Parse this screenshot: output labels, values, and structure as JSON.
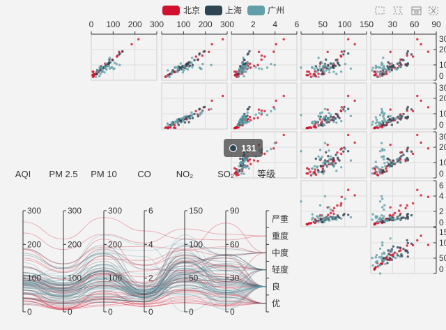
{
  "legend": [
    {
      "name": "北京",
      "color": "#d0102c"
    },
    {
      "name": "上海",
      "color": "#2f4554"
    },
    {
      "name": "广州",
      "color": "#61a0a8"
    }
  ],
  "toolbox": [
    "rect-select-icon",
    "lasso-select-icon",
    "keep-selection-icon",
    "clear-selection-icon"
  ],
  "tooltip": {
    "value": "131"
  },
  "chart_data": {
    "type": "scatter-matrix-parallel",
    "dimensions": [
      "AQI",
      "PM 2.5",
      "PM 10",
      "CO",
      "NO₂",
      "SO₂",
      "等级"
    ],
    "dimension_max": [
      300,
      300,
      300,
      6,
      150,
      90
    ],
    "level_categories": [
      "优",
      "良",
      "轻度",
      "中度",
      "重度",
      "严重"
    ],
    "matrix": {
      "x_dims": [
        1,
        2,
        3,
        4,
        5
      ],
      "y_dims": [
        0,
        1,
        2,
        3,
        4
      ],
      "x_ticks": [
        [
          "0",
          "100",
          "200",
          "300"
        ],
        [
          "0",
          "100",
          "200",
          "300"
        ],
        [
          "0",
          "2",
          "4",
          "6"
        ],
        [
          "0",
          "50",
          "100",
          "150"
        ],
        [
          "0",
          "30",
          "60",
          "90"
        ]
      ],
      "y_ticks": [
        [
          "0",
          "100",
          "200",
          "300"
        ],
        [
          "0",
          "100",
          "200",
          "300"
        ],
        [
          "0",
          "100",
          "200",
          "300"
        ],
        [
          "0",
          "2",
          "4",
          "6"
        ],
        [
          "0",
          "50",
          "100",
          "150"
        ]
      ]
    },
    "parallel_ticks": [
      [
        "0",
        "100",
        "200",
        "300"
      ],
      [
        "0",
        "100",
        "200",
        "300"
      ],
      [
        "0",
        "100",
        "200",
        "300"
      ],
      [
        "0",
        "2",
        "4",
        "6"
      ],
      [
        "0",
        "50",
        "100",
        "150"
      ],
      [
        "0",
        "30",
        "60",
        "90"
      ]
    ],
    "series": [
      {
        "name": "北京",
        "data": [
          [
            55,
            9,
            56,
            0.46,
            18,
            6,
            1
          ],
          [
            25,
            11,
            21,
            0.65,
            34,
            9,
            0
          ],
          [
            56,
            7,
            63,
            0.3,
            14,
            5,
            1
          ],
          [
            33,
            7,
            29,
            0.33,
            16,
            6,
            0
          ],
          [
            42,
            24,
            44,
            0.76,
            40,
            16,
            0
          ],
          [
            82,
            58,
            90,
            1.77,
            68,
            33,
            1
          ],
          [
            74,
            49,
            77,
            1.46,
            48,
            27,
            1
          ],
          [
            78,
            55,
            80,
            1.29,
            59,
            29,
            1
          ],
          [
            267,
            216,
            280,
            4.8,
            108,
            64,
            4
          ],
          [
            185,
            127,
            216,
            2.52,
            61,
            27,
            3
          ],
          [
            39,
            19,
            38,
            0.57,
            31,
            15,
            0
          ],
          [
            41,
            11,
            40,
            0.43,
            21,
            7,
            0
          ],
          [
            64,
            38,
            74,
            1.04,
            46,
            22,
            1
          ],
          [
            108,
            79,
            120,
            1.7,
            75,
            41,
            2
          ],
          [
            108,
            63,
            116,
            1.48,
            44,
            26,
            2
          ],
          [
            33,
            6,
            29,
            0.34,
            13,
            5,
            0
          ],
          [
            94,
            66,
            110,
            1.54,
            62,
            31,
            1
          ],
          [
            186,
            142,
            192,
            3.88,
            93,
            79,
            3
          ],
          [
            57,
            31,
            54,
            0.96,
            32,
            14,
            1
          ],
          [
            22,
            8,
            17,
            0.48,
            23,
            10,
            0
          ],
          [
            39,
            15,
            36,
            0.61,
            29,
            13,
            0
          ],
          [
            94,
            69,
            114,
            2.08,
            73,
            39,
            1
          ],
          [
            99,
            73,
            110,
            2.43,
            76,
            48,
            1
          ],
          [
            31,
            12,
            30,
            0.5,
            32,
            16,
            0
          ],
          [
            42,
            27,
            43,
            1,
            53,
            22,
            0
          ],
          [
            154,
            117,
            157,
            3.05,
            92,
            58,
            3
          ],
          [
            234,
            185,
            230,
            4.09,
            123,
            69,
            4
          ],
          [
            160,
            120,
            186,
            2.77,
            91,
            50,
            3
          ],
          [
            134,
            96,
            165,
            2.76,
            83,
            41,
            2
          ],
          [
            52,
            24,
            60,
            1.03,
            50,
            21,
            1
          ]
        ]
      },
      {
        "name": "上海",
        "data": [
          [
            91,
            45,
            125,
            0.82,
            34,
            23,
            1
          ],
          [
            65,
            27,
            78,
            0.86,
            45,
            29,
            1
          ],
          [
            83,
            60,
            84,
            1.09,
            73,
            27,
            1
          ],
          [
            109,
            81,
            121,
            1.28,
            68,
            51,
            2
          ],
          [
            106,
            77,
            114,
            1.07,
            55,
            51,
            2
          ],
          [
            89,
            65,
            78,
            0.86,
            51,
            26,
            1
          ],
          [
            53,
            33,
            47,
            0.64,
            50,
            17,
            1
          ],
          [
            80,
            55,
            80,
            1.01,
            75,
            24,
            1
          ],
          [
            117,
            81,
            124,
            1.03,
            45,
            24,
            2
          ],
          [
            99,
            71,
            142,
            1.1,
            62,
            42,
            1
          ],
          [
            95,
            69,
            130,
            1.28,
            74,
            50,
            1
          ],
          [
            116,
            87,
            131,
            1.47,
            84,
            40,
            2
          ],
          [
            108,
            80,
            121,
            1.3,
            85,
            37,
            2
          ],
          [
            134,
            83,
            167,
            1.16,
            57,
            43,
            2
          ],
          [
            79,
            43,
            107,
            1.05,
            59,
            37,
            1
          ],
          [
            71,
            46,
            89,
            0.86,
            64,
            25,
            1
          ],
          [
            97,
            71,
            113,
            1.17,
            88,
            31,
            1
          ],
          [
            84,
            57,
            91,
            0.85,
            55,
            31,
            1
          ],
          [
            87,
            63,
            101,
            0.9,
            56,
            41,
            1
          ],
          [
            104,
            77,
            119,
            1.09,
            73,
            48,
            2
          ],
          [
            87,
            62,
            100,
            1,
            72,
            28,
            1
          ],
          [
            168,
            128,
            172,
            1.49,
            97,
            56,
            3
          ],
          [
            65,
            45,
            51,
            0.74,
            39,
            17,
            1
          ],
          [
            39,
            24,
            38,
            0.61,
            47,
            17,
            0
          ],
          [
            39,
            24,
            39,
            0.59,
            50,
            19,
            0
          ],
          [
            93,
            68,
            96,
            1.05,
            79,
            29,
            1
          ],
          [
            188,
            143,
            197,
            1.66,
            99,
            51,
            3
          ],
          [
            174,
            131,
            174,
            1.55,
            108,
            50,
            3
          ],
          [
            131,
            98,
            150,
            1.2,
            80,
            45,
            2
          ]
        ]
      },
      {
        "name": "广州",
        "data": [
          [
            26,
            37,
            27,
            1.163,
            27,
            13,
            0
          ],
          [
            85,
            62,
            71,
            1.195,
            60,
            8,
            1
          ],
          [
            78,
            38,
            74,
            1.363,
            37,
            7,
            1
          ],
          [
            21,
            21,
            36,
            0.634,
            40,
            9,
            0
          ],
          [
            41,
            42,
            46,
            0.915,
            81,
            13,
            0
          ],
          [
            56,
            52,
            69,
            1.067,
            92,
            16,
            1
          ],
          [
            64,
            30,
            28,
            0.924,
            51,
            2,
            1
          ],
          [
            55,
            48,
            74,
            1.236,
            75,
            26,
            1
          ],
          [
            76,
            85,
            113,
            1.237,
            114,
            27,
            1
          ],
          [
            91,
            81,
            104,
            1.041,
            56,
            40,
            1
          ],
          [
            84,
            39,
            60,
            0.964,
            25,
            11,
            1
          ],
          [
            64,
            51,
            101,
            0.862,
            58,
            23,
            1
          ],
          [
            70,
            69,
            120,
            1.198,
            65,
            36,
            1
          ],
          [
            77,
            105,
            178,
            2.549,
            64,
            16,
            1
          ],
          [
            109,
            68,
            87,
            0.996,
            74,
            29,
            2
          ],
          [
            73,
            68,
            97,
            0.905,
            51,
            34,
            1
          ],
          [
            54,
            27,
            47,
            0.592,
            53,
            12,
            1
          ],
          [
            51,
            61,
            97,
            0.811,
            65,
            19,
            1
          ],
          [
            91,
            71,
            121,
            1.374,
            43,
            18,
            1
          ],
          [
            73,
            102,
            182,
            2.787,
            44,
            19,
            1
          ],
          [
            73,
            50,
            76,
            0.717,
            31,
            20,
            1
          ],
          [
            84,
            94,
            140,
            2.238,
            68,
            18,
            1
          ],
          [
            93,
            77,
            104,
            1.165,
            53,
            7,
            1
          ],
          [
            99,
            130,
            227,
            3.97,
            55,
            15,
            1
          ],
          [
            146,
            84,
            139,
            1.094,
            40,
            17,
            2
          ],
          [
            113,
            108,
            137,
            1.481,
            48,
            15,
            2
          ],
          [
            81,
            48,
            62,
            1.619,
            26,
            3,
            1
          ],
          [
            56,
            48,
            68,
            1.336,
            37,
            9,
            1
          ],
          [
            82,
            92,
            174,
            3.29,
            0,
            13,
            1
          ],
          [
            106,
            116,
            188,
            3.628,
            101,
            16,
            2
          ]
        ]
      }
    ]
  }
}
